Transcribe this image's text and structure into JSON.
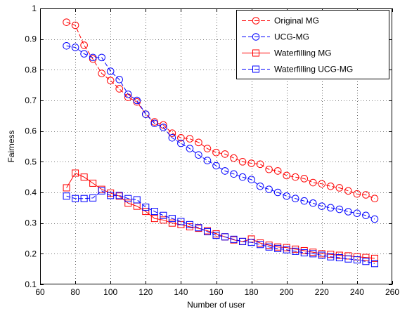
{
  "chart_data": {
    "type": "line",
    "xlabel": "Number of user",
    "ylabel": "Fairness",
    "xlim": [
      60,
      260
    ],
    "ylim": [
      0.1,
      1
    ],
    "xticks": [
      60,
      80,
      100,
      120,
      140,
      160,
      180,
      200,
      220,
      240,
      260
    ],
    "yticks": [
      0.1,
      0.2,
      0.3,
      0.4,
      0.5,
      0.6,
      0.7,
      0.8,
      0.9,
      1
    ],
    "ytick_labels": [
      "0.1",
      "0.2",
      "0.3",
      "0.4",
      "0.5",
      "0.6",
      "0.7",
      "0.8",
      "0.9",
      "1"
    ],
    "grid": true,
    "legend_position": "top-right",
    "x": [
      75,
      80,
      85,
      90,
      95,
      100,
      105,
      110,
      115,
      120,
      125,
      130,
      135,
      140,
      145,
      150,
      155,
      160,
      165,
      170,
      175,
      180,
      185,
      190,
      195,
      200,
      205,
      210,
      215,
      220,
      225,
      230,
      235,
      240,
      245,
      250
    ],
    "series": [
      {
        "name": "Original MG",
        "color": "#ff0000",
        "marker": "circle",
        "dash": "6,3",
        "values": [
          0.955,
          0.945,
          0.88,
          0.835,
          0.788,
          0.765,
          0.738,
          0.71,
          0.695,
          0.655,
          0.63,
          0.62,
          0.593,
          0.578,
          0.575,
          0.563,
          0.543,
          0.53,
          0.525,
          0.512,
          0.5,
          0.495,
          0.492,
          0.475,
          0.47,
          0.455,
          0.45,
          0.445,
          0.432,
          0.428,
          0.42,
          0.415,
          0.405,
          0.395,
          0.392,
          0.38
        ]
      },
      {
        "name": "UCG-MG",
        "color": "#0000ff",
        "marker": "circle",
        "dash": "6,3",
        "values": [
          0.878,
          0.873,
          0.852,
          0.84,
          0.84,
          0.795,
          0.768,
          0.72,
          0.7,
          0.655,
          0.625,
          0.612,
          0.578,
          0.56,
          0.543,
          0.522,
          0.504,
          0.487,
          0.47,
          0.46,
          0.45,
          0.442,
          0.42,
          0.41,
          0.4,
          0.388,
          0.38,
          0.372,
          0.365,
          0.355,
          0.35,
          0.345,
          0.337,
          0.332,
          0.325,
          0.313
        ]
      },
      {
        "name": "Waterfilling MG",
        "color": "#ff0000",
        "marker": "square",
        "dash": "none",
        "values": [
          0.415,
          0.463,
          0.45,
          0.43,
          0.41,
          0.398,
          0.388,
          0.365,
          0.355,
          0.338,
          0.315,
          0.31,
          0.3,
          0.295,
          0.288,
          0.283,
          0.275,
          0.265,
          0.255,
          0.245,
          0.24,
          0.248,
          0.235,
          0.228,
          0.222,
          0.22,
          0.215,
          0.21,
          0.205,
          0.2,
          0.198,
          0.195,
          0.193,
          0.19,
          0.188,
          0.185
        ]
      },
      {
        "name": "Waterfilling UCG-MG",
        "color": "#0000ff",
        "marker": "square",
        "dash": "6,3",
        "values": [
          0.388,
          0.38,
          0.38,
          0.382,
          0.405,
          0.39,
          0.39,
          0.38,
          0.376,
          0.352,
          0.338,
          0.325,
          0.315,
          0.305,
          0.295,
          0.285,
          0.272,
          0.26,
          0.255,
          0.247,
          0.24,
          0.237,
          0.23,
          0.222,
          0.217,
          0.213,
          0.208,
          0.203,
          0.2,
          0.195,
          0.19,
          0.187,
          0.183,
          0.18,
          0.175,
          0.168
        ]
      }
    ]
  }
}
